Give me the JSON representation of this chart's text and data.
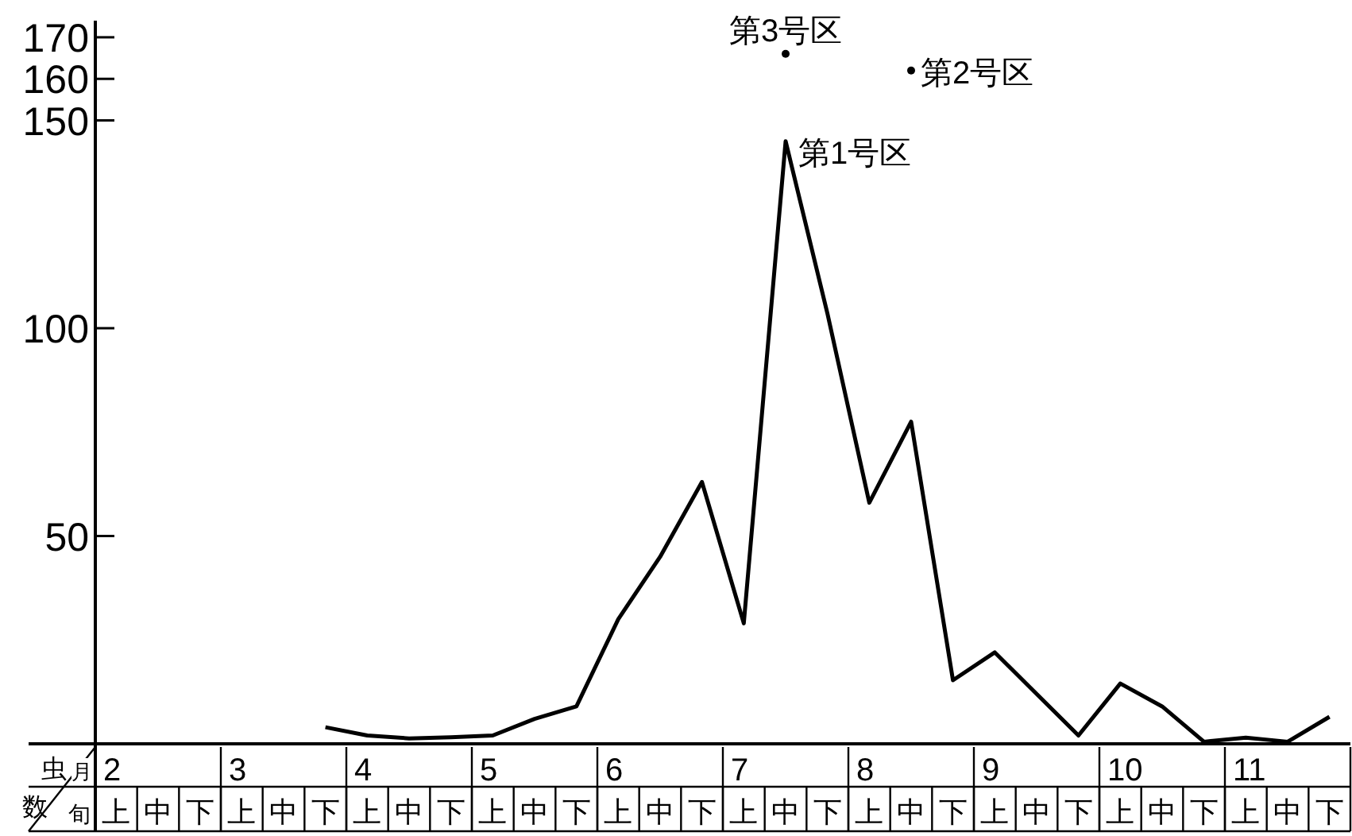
{
  "chart_data": {
    "type": "line",
    "ylabel": "虫数",
    "categories": [
      "上",
      "中",
      "下",
      "上",
      "中",
      "下",
      "上",
      "中",
      "下",
      "上",
      "中",
      "下",
      "上",
      "中",
      "下",
      "上",
      "中",
      "下",
      "上",
      "中",
      "下",
      "上",
      "中",
      "下",
      "上",
      "中",
      "下",
      "上",
      "中",
      "下"
    ],
    "annotations": [
      "月",
      "旬",
      "2",
      "3",
      "4",
      "5",
      "6",
      "7",
      "8",
      "9",
      "10",
      "11"
    ],
    "series": [
      {
        "name": "第1号区",
        "color": "#000000",
        "values": [
          null,
          null,
          null,
          null,
          null,
          4,
          2,
          1.3,
          1.6,
          2,
          6,
          9,
          30,
          45,
          63,
          29,
          145,
          103.5,
          58,
          77.5,
          15.3,
          22,
          12,
          2,
          14.5,
          9,
          0.5,
          1.5,
          0.5,
          6.5
        ]
      },
      {
        "name": "第3号区",
        "type": "scatter",
        "color": "#000000",
        "values": [
          null,
          null,
          null,
          null,
          null,
          null,
          null,
          null,
          null,
          null,
          null,
          null,
          null,
          null,
          null,
          null,
          166,
          null,
          null,
          null,
          null,
          null,
          null,
          null,
          null,
          null,
          null,
          null,
          null,
          null
        ]
      },
      {
        "name": "第2号区",
        "type": "scatter",
        "color": "#000000",
        "values": [
          null,
          null,
          null,
          null,
          null,
          null,
          null,
          null,
          null,
          null,
          null,
          null,
          null,
          null,
          null,
          null,
          null,
          null,
          null,
          162,
          null,
          null,
          null,
          null,
          null,
          null,
          null,
          null,
          null,
          null
        ]
      }
    ],
    "ylim": [
      0,
      174
    ],
    "yticks": [
      50,
      100,
      150,
      160,
      170
    ],
    "grid": false,
    "legend": false
  }
}
